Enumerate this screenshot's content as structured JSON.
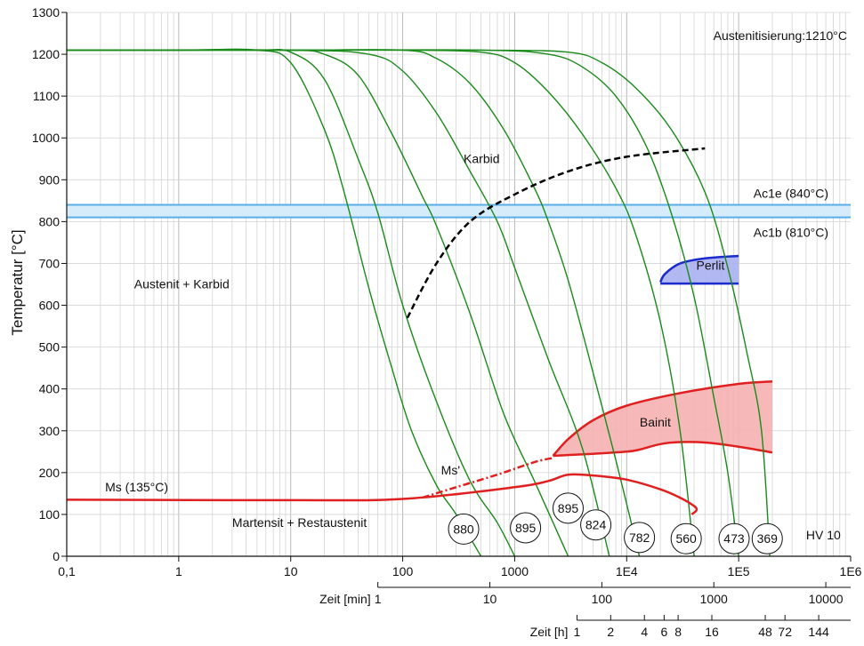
{
  "chart_data": {
    "type": "line",
    "xaxis": {
      "scale": "log",
      "unit_label": "",
      "xlim": [
        0.1,
        1000000
      ],
      "ticks": [
        "0,1",
        "1",
        "10",
        "100",
        "1000",
        "1E4",
        "1E5",
        "1E6"
      ]
    },
    "yaxis": {
      "label": "Temperatur [°C]",
      "ylim": [
        0,
        1300
      ],
      "ticks": [
        0,
        100,
        200,
        300,
        400,
        500,
        600,
        700,
        800,
        900,
        1000,
        1100,
        1200,
        1300
      ]
    },
    "grid": true,
    "top_right_note": "Austenitisierung:1210°C",
    "min_axis": {
      "label": "Zeit [min]",
      "ticks": [
        "1",
        "10",
        "100",
        "1000",
        "10000"
      ],
      "ticks_in_seconds": [
        60,
        600,
        6000,
        60000,
        600000
      ]
    },
    "h_axis": {
      "label": "Zeit [h]",
      "ticks": [
        "1",
        "2",
        "4",
        "6",
        "8",
        "16",
        "48",
        "72",
        "144"
      ],
      "ticks_in_seconds": [
        3600,
        7200,
        14400,
        21600,
        28800,
        57600,
        172800,
        259200,
        518400
      ]
    },
    "lines": [
      {
        "name": "Ac1e (840°C)",
        "y": 840,
        "color": "#5aaee6"
      },
      {
        "name": "Ac1b (810°C)",
        "y": 810,
        "color": "#5aaee6"
      }
    ],
    "region_labels": [
      {
        "text": "Austenit + Karbid",
        "x": 0.4,
        "y": 640
      },
      {
        "text": "Martensit + Restaustenit",
        "x": 3,
        "y": 70
      },
      {
        "text": "Karbid",
        "x": 350,
        "y": 940
      },
      {
        "text": "Perlit",
        "x": 56000,
        "y": 685
      },
      {
        "text": "Bainit",
        "x": 18000,
        "y": 310
      },
      {
        "text": "Ms (135°C)",
        "x": 0.22,
        "y": 155
      },
      {
        "text": "Ms'",
        "x": 220,
        "y": 195
      },
      {
        "text": "HV 10",
        "x": 400000,
        "y": 40
      }
    ],
    "cooling_curves": [
      {
        "hardness": "880",
        "x": [
          0.1,
          1,
          5,
          10,
          20,
          30,
          50,
          80,
          120,
          200,
          300,
          500
        ],
        "y": [
          1210,
          1210,
          1210,
          1180,
          1020,
          870,
          640,
          450,
          300,
          170,
          100,
          0
        ]
      },
      {
        "hardness": "895",
        "x": [
          0.1,
          1,
          5,
          10,
          20,
          40,
          60,
          100,
          200,
          400,
          700,
          1000
        ],
        "y": [
          1210,
          1210,
          1210,
          1205,
          1140,
          950,
          820,
          600,
          370,
          180,
          80,
          0
        ]
      },
      {
        "hardness": "895",
        "x": [
          0.1,
          1,
          10,
          20,
          40,
          80,
          150,
          200,
          400,
          800,
          1500,
          3000
        ],
        "y": [
          1210,
          1210,
          1210,
          1200,
          1150,
          1010,
          860,
          790,
          580,
          340,
          180,
          0
        ]
      },
      {
        "hardness": "824",
        "x": [
          0.1,
          10,
          50,
          100,
          200,
          400,
          700,
          1000,
          2000,
          4000,
          7000
        ],
        "y": [
          1210,
          1210,
          1200,
          1160,
          1060,
          920,
          800,
          690,
          470,
          260,
          0
        ]
      },
      {
        "hardness": "782",
        "x": [
          0.1,
          10,
          100,
          200,
          400,
          800,
          1500,
          2000,
          3000,
          5000,
          8000,
          13000
        ],
        "y": [
          1210,
          1210,
          1210,
          1190,
          1130,
          1020,
          880,
          800,
          660,
          440,
          230,
          0
        ]
      },
      {
        "hardness": "560",
        "x": [
          0.1,
          10,
          100,
          500,
          1000,
          2000,
          4000,
          8000,
          12000,
          20000,
          30000,
          40000
        ],
        "y": [
          1210,
          1210,
          1210,
          1205,
          1180,
          1110,
          1010,
          880,
          770,
          560,
          300,
          0
        ]
      },
      {
        "hardness": "473",
        "x": [
          0.1,
          10,
          500,
          2000,
          4000,
          8000,
          15000,
          25000,
          40000,
          60000,
          80000,
          100000
        ],
        "y": [
          1210,
          1210,
          1210,
          1200,
          1170,
          1100,
          980,
          820,
          620,
          380,
          200,
          0
        ]
      },
      {
        "hardness": "369",
        "x": [
          0.1,
          10,
          500,
          3000,
          6000,
          12000,
          25000,
          50000,
          80000,
          120000,
          160000,
          190000
        ],
        "y": [
          1210,
          1210,
          1210,
          1205,
          1180,
          1120,
          1020,
          870,
          690,
          480,
          300,
          0
        ]
      }
    ],
    "hardness_labels": [
      {
        "text": "880",
        "x": 350,
        "y": 65
      },
      {
        "text": "895",
        "x": 1250,
        "y": 68
      },
      {
        "text": "895",
        "x": 3000,
        "y": 115
      },
      {
        "text": "824",
        "x": 5300,
        "y": 75
      },
      {
        "text": "782",
        "x": 13000,
        "y": 45
      },
      {
        "text": "560",
        "x": 34000,
        "y": 42
      },
      {
        "text": "473",
        "x": 91000,
        "y": 42
      },
      {
        "text": "369",
        "x": 180000,
        "y": 42
      }
    ],
    "karbid_curve": {
      "x": [
        110,
        200,
        400,
        1000,
        3000,
        10000,
        50000
      ],
      "y": [
        570,
        700,
        800,
        865,
        920,
        955,
        975
      ]
    },
    "ms_line": {
      "x": [
        0.1,
        10,
        100,
        1000,
        2000,
        3000,
        5000,
        10000,
        20000,
        30000,
        40000,
        42000,
        38000
      ],
      "y": [
        135,
        134,
        137,
        165,
        180,
        195,
        193,
        183,
        160,
        140,
        120,
        110,
        100
      ]
    },
    "ms_prime": {
      "x": [
        150,
        300,
        700,
        1500,
        2200
      ],
      "y": [
        140,
        165,
        195,
        225,
        235
      ]
    },
    "bainit": {
      "top": {
        "x": [
          2200,
          3000,
          5000,
          10000,
          30000,
          100000,
          200000
        ],
        "y": [
          240,
          280,
          325,
          360,
          390,
          412,
          418
        ]
      },
      "bottom": {
        "x": [
          200000,
          100000,
          50000,
          30000,
          20000,
          13000,
          10000,
          5000,
          2200
        ],
        "y": [
          248,
          262,
          272,
          273,
          268,
          255,
          250,
          245,
          240
        ]
      }
    },
    "perlit": {
      "top": {
        "x": [
          20000,
          22000,
          30000,
          50000,
          100000
        ],
        "y": [
          655,
          675,
          700,
          712,
          718
        ]
      },
      "bottom": {
        "x": [
          100000,
          50000,
          20000
        ],
        "y": [
          652,
          652,
          652
        ]
      }
    },
    "colors": {
      "cooling": "#1a8a1a",
      "karbid": "#000000",
      "ms": "#e02020",
      "bainit_fill": "#f5b0b0",
      "perlit_fill": "#aab0f0",
      "perlit_line": "#1a2ccc",
      "ac_band": "#d6ecfb"
    }
  }
}
